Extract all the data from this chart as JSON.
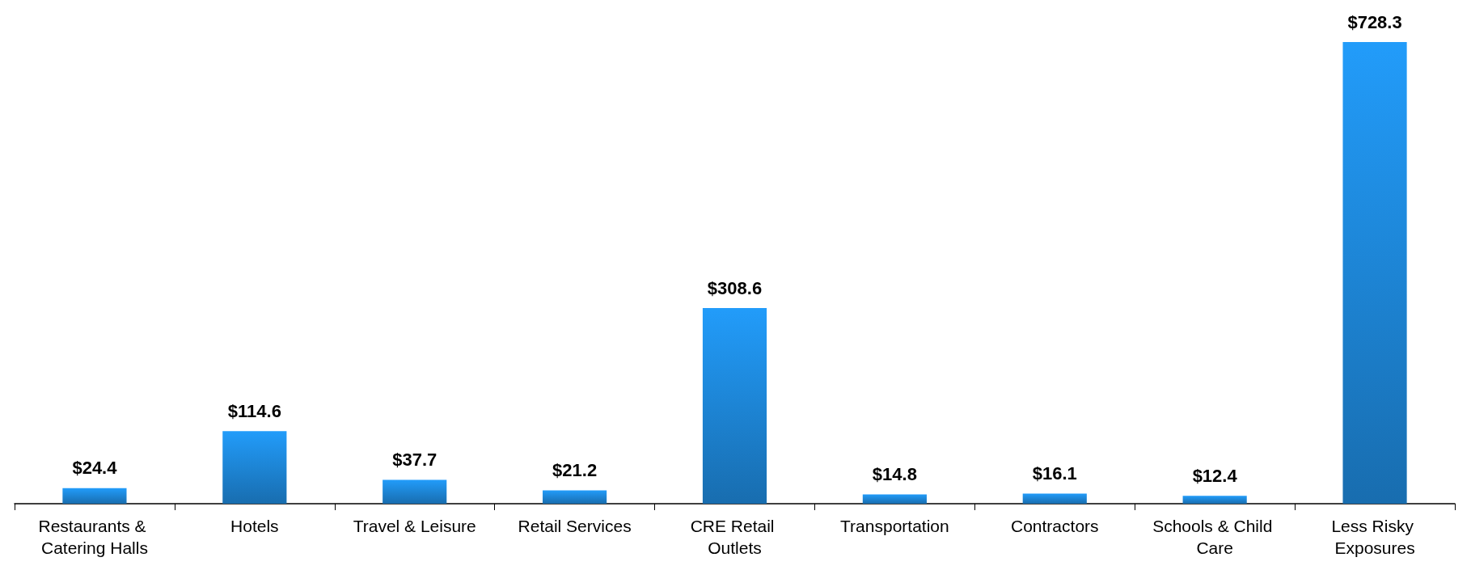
{
  "chart_data": {
    "type": "bar",
    "categories": [
      "Restaurants & Catering Halls",
      "Hotels",
      "Travel & Leisure",
      "Retail Services",
      "CRE Retail Outlets",
      "Transportation",
      "Contractors",
      "Schools & Child Care",
      "Less Risky Exposures"
    ],
    "values": [
      24.4,
      114.6,
      37.7,
      21.2,
      308.6,
      14.8,
      16.1,
      12.4,
      728.3
    ],
    "value_labels": [
      "$24.4",
      "$114.6",
      "$37.7",
      "$21.2",
      "$308.6",
      "$14.8",
      "$16.1",
      "$12.4",
      "$728.3"
    ],
    "color": "#229cfa",
    "grid": false
  }
}
